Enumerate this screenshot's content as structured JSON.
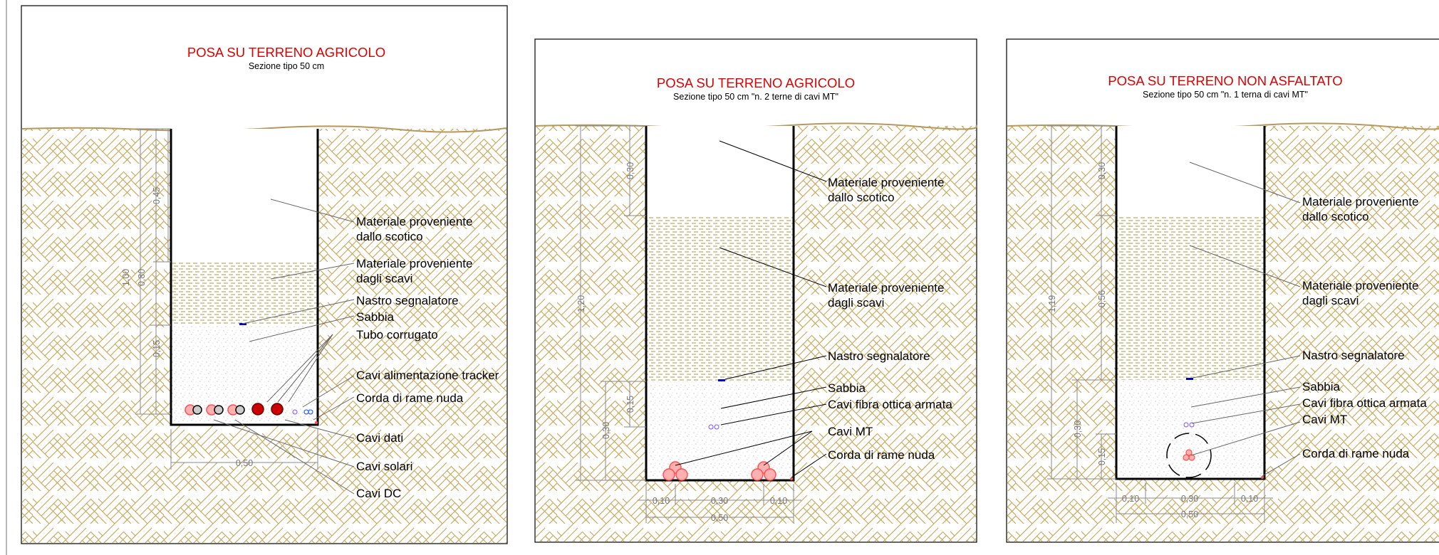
{
  "panels": [
    {
      "title": "POSA SU TERRENO AGRICOLO",
      "subtitle": "Sezione tipo 50 cm",
      "labels": [
        "Materiale proveniente",
        "dallo scotico",
        "Materiale proveniente",
        "dagli scavi",
        "Nastro segnalatore",
        "Sabbia",
        "Tubo corrugato",
        "Cavi alimentazione tracker",
        "Corda di rame nuda",
        "Cavi dati",
        "Cavi solari",
        "Cavi DC"
      ],
      "dimensions": [
        "1,00",
        "0,80",
        "0,45",
        "0,15",
        "0,50"
      ]
    },
    {
      "title": "POSA SU TERRENO AGRICOLO",
      "subtitle": "Sezione tipo 50 cm \"n. 2 terne di cavi MT\"",
      "labels": [
        "Materiale proveniente",
        "dallo scotico",
        "Materiale proveniente",
        "dagli scavi",
        "Nastro segnalatore",
        "Sabbia",
        "Cavi fibra ottica armata",
        "Cavi MT",
        "Corda di rame nuda"
      ],
      "dimensions": [
        "1,20",
        "0,30",
        "0,15",
        "0,30",
        "0,10",
        "0,30",
        "0,10",
        "0,50"
      ]
    },
    {
      "title": "POSA SU TERRENO NON ASFALTATO",
      "subtitle": "Sezione tipo 50 cm \"n. 1 terna di cavi MT\"",
      "labels": [
        "Materiale proveniente",
        "dallo scotico",
        "Materiale proveniente",
        "dagli scavi",
        "Nastro segnalatore",
        "Sabbia",
        "Cavi fibra ottica armata",
        "Cavi MT",
        "Corda di rame nuda"
      ],
      "dimensions": [
        "1,19",
        "0,30",
        "0,56",
        "0,30",
        "0,15",
        "0,10",
        "0,30",
        "0,10",
        "0,50"
      ]
    }
  ],
  "colors": {
    "title": "#e00000",
    "soil": "#c9a85a",
    "ground_line": "#b8975a",
    "cable": "#ff5050",
    "tape": "#0000c8"
  }
}
